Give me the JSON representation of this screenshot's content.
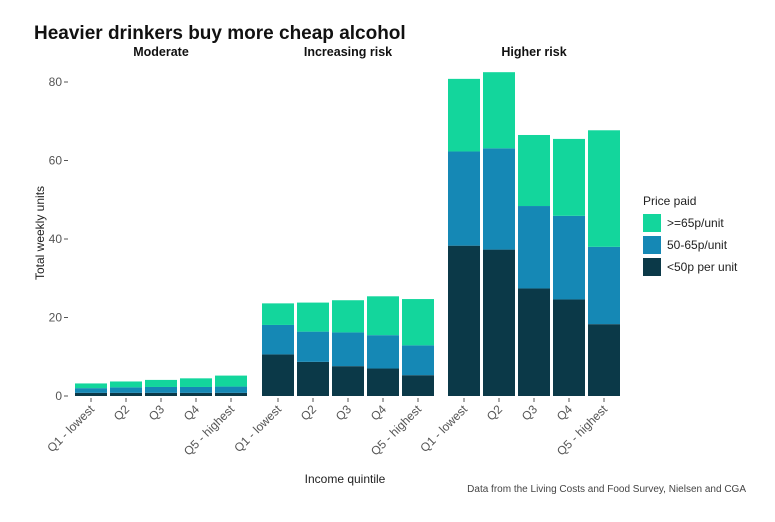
{
  "chart_data": {
    "type": "bar",
    "stacked": true,
    "title": "Heavier drinkers buy more cheap alcohol",
    "xlabel": "Income quintile",
    "ylabel": "Total weekly units",
    "ylim": [
      0,
      85
    ],
    "yticks": [
      0,
      20,
      40,
      60,
      80
    ],
    "categories": [
      "Q1 - lowest",
      "Q2",
      "Q3",
      "Q4",
      "Q5 - highest"
    ],
    "legend": {
      "title": "Price paid",
      "position": "right",
      "entries": [
        ">=65p/unit",
        "50-65p/unit",
        "<50p per unit"
      ]
    },
    "colors": {
      ">=65p/unit": "#13d69c",
      "50-65p/unit": "#1588b5",
      "<50p per unit": "#0b3948"
    },
    "panels": [
      {
        "name": "Moderate",
        "series": [
          {
            "name": "<50p per unit",
            "values": [
              0.8,
              0.8,
              0.8,
              0.8,
              0.8
            ]
          },
          {
            "name": "50-65p/unit",
            "values": [
              1.2,
              1.4,
              1.5,
              1.5,
              1.6
            ]
          },
          {
            "name": ">=65p/unit",
            "values": [
              1.2,
              1.5,
              1.8,
              2.2,
              2.8
            ]
          }
        ]
      },
      {
        "name": "Increasing risk",
        "series": [
          {
            "name": "<50p per unit",
            "values": [
              10.6,
              8.7,
              7.6,
              7.0,
              5.3
            ]
          },
          {
            "name": "50-65p/unit",
            "values": [
              7.5,
              7.7,
              8.6,
              8.5,
              7.6
            ]
          },
          {
            "name": ">=65p/unit",
            "values": [
              5.5,
              7.4,
              8.2,
              9.9,
              11.8
            ]
          }
        ]
      },
      {
        "name": "Higher risk",
        "series": [
          {
            "name": "<50p per unit",
            "values": [
              38.3,
              37.3,
              27.4,
              24.6,
              18.3
            ]
          },
          {
            "name": "50-65p/unit",
            "values": [
              24.0,
              25.8,
              21.0,
              21.3,
              19.7
            ]
          },
          {
            "name": ">=65p/unit",
            "values": [
              18.5,
              19.4,
              18.1,
              19.6,
              29.7
            ]
          }
        ]
      }
    ],
    "caption": "Data from the Living Costs and Food Survey, Nielsen and CGA"
  }
}
